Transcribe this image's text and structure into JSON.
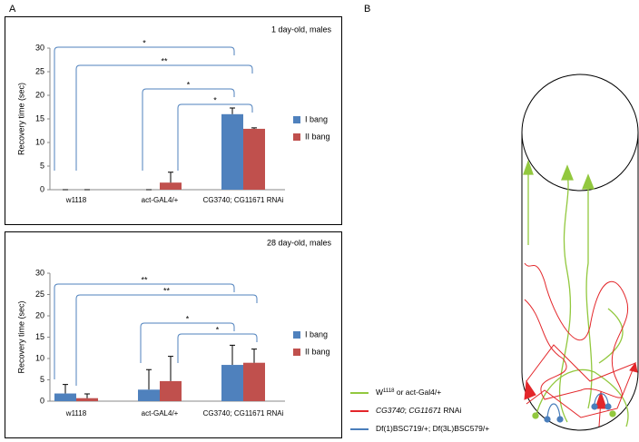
{
  "panel_labels": [
    "A",
    "B"
  ],
  "chart_data": [
    {
      "type": "bar",
      "title": "1 day-old, males",
      "y_label": "Recovery time (sec)",
      "categories": [
        "w1118",
        "act-GAL4/+",
        "CG3740; CG11671 RNAi"
      ],
      "series": [
        {
          "name": "I bang",
          "color": "#4f81bd",
          "values": [
            0,
            0,
            16
          ],
          "errors": [
            0,
            0,
            1.3
          ]
        },
        {
          "name": "II bang",
          "color": "#c0504d",
          "values": [
            0,
            1.5,
            12.9
          ],
          "errors": [
            0,
            2.2,
            0.2
          ]
        }
      ],
      "ylim": [
        0,
        30
      ],
      "yticks": [
        0,
        5,
        10,
        15,
        20,
        25,
        30
      ],
      "annotations": [
        "*",
        "**",
        "*",
        "*"
      ]
    },
    {
      "type": "bar",
      "title": "28 day-old, males",
      "y_label": "Recovery time (sec)",
      "categories": [
        "w1118",
        "act-GAL4/+",
        "CG3740; CG11671 RNAi"
      ],
      "series": [
        {
          "name": "I bang",
          "color": "#4f81bd",
          "values": [
            1.8,
            2.7,
            8.5
          ],
          "errors": [
            2.1,
            4.7,
            4.6
          ]
        },
        {
          "name": "II bang",
          "color": "#c0504d",
          "values": [
            0.7,
            4.7,
            9.0
          ],
          "errors": [
            1.0,
            5.8,
            3.2
          ]
        }
      ],
      "ylim": [
        0,
        30
      ],
      "yticks": [
        0,
        5,
        10,
        15,
        20,
        25,
        30
      ],
      "annotations": [
        "**",
        "**",
        "*",
        "*"
      ]
    }
  ],
  "diagram": {
    "legend": [
      {
        "color": "#92c83e",
        "parts": [
          "W",
          "1118",
          " or act-Gal4/+"
        ]
      },
      {
        "color": "#e3262a",
        "parts": [
          "CG3740",
          "; ",
          "CG11671",
          " RNAi"
        ]
      },
      {
        "color": "#4a7ebb",
        "parts": [
          "Df(1)BSC719/+; Df(3L)BSC579/+"
        ]
      }
    ]
  }
}
